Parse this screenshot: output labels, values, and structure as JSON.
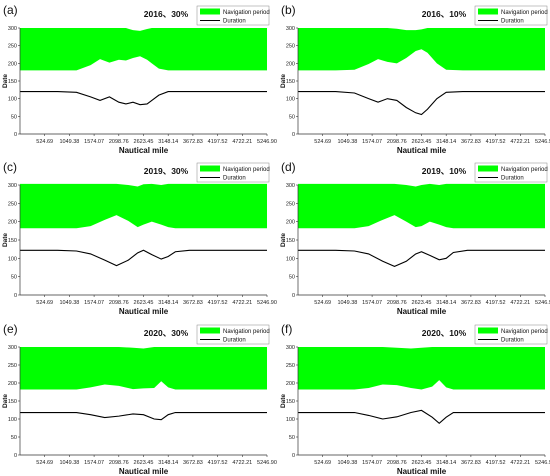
{
  "chart_data": [
    {
      "type": "area",
      "panel_label": "(a)",
      "title": "2016、30%",
      "xlabel": "Nautical mile",
      "ylabel": "Date",
      "x_ticks": [
        "524.69",
        "1049.38",
        "1574.07",
        "2098.76",
        "2623.45",
        "3148.14",
        "3672.83",
        "4197.52",
        "4722.21",
        "5246.90"
      ],
      "x": [
        0,
        400,
        800,
        1200,
        1500,
        1700,
        1900,
        2100,
        2250,
        2400,
        2550,
        2700,
        2800,
        2950,
        3148,
        3500,
        4000,
        5246.9
      ],
      "ylim": [
        0,
        300
      ],
      "yticks": [
        0,
        50,
        100,
        150,
        200,
        250,
        300
      ],
      "series": [
        {
          "name": "Navigation period",
          "type": "band",
          "color": "#00ff00",
          "lower": [
            180,
            180,
            180,
            180,
            195,
            212,
            202,
            210,
            208,
            215,
            220,
            210,
            200,
            185,
            180,
            180,
            180,
            180
          ],
          "upper": [
            300,
            300,
            300,
            300,
            300,
            300,
            300,
            300,
            300,
            294,
            292,
            297,
            300,
            300,
            300,
            300,
            300,
            300
          ]
        },
        {
          "name": "Duration",
          "type": "line",
          "color": "#000000",
          "values": [
            120,
            120,
            120,
            118,
            105,
            95,
            105,
            90,
            85,
            90,
            83,
            85,
            95,
            110,
            120,
            120,
            120,
            120
          ]
        }
      ],
      "legend": "top-right"
    },
    {
      "type": "area",
      "panel_label": "(b)",
      "title": "2016、10%",
      "xlabel": "Nautical mile",
      "ylabel": "Date",
      "x_ticks": [
        "524.69",
        "1049.38",
        "1574.07",
        "2098.76",
        "2623.45",
        "3148.14",
        "3672.83",
        "4197.52",
        "4722.21",
        "5246.90"
      ],
      "x": [
        0,
        400,
        800,
        1200,
        1500,
        1700,
        1900,
        2100,
        2300,
        2500,
        2623,
        2750,
        2950,
        3148,
        3500,
        4000,
        5246.9
      ],
      "ylim": [
        0,
        300
      ],
      "yticks": [
        0,
        50,
        100,
        150,
        200,
        250,
        300
      ],
      "series": [
        {
          "name": "Navigation period",
          "type": "band",
          "color": "#00ff00",
          "lower": [
            180,
            180,
            180,
            182,
            198,
            212,
            204,
            200,
            215,
            235,
            240,
            230,
            200,
            182,
            180,
            180,
            180
          ],
          "upper": [
            300,
            300,
            300,
            300,
            300,
            300,
            300,
            298,
            294,
            294,
            296,
            300,
            300,
            300,
            300,
            300,
            300
          ]
        },
        {
          "name": "Duration",
          "type": "line",
          "color": "#000000",
          "values": [
            120,
            120,
            120,
            116,
            100,
            90,
            100,
            95,
            75,
            60,
            55,
            70,
            100,
            118,
            120,
            120,
            120
          ]
        }
      ],
      "legend": "top-right"
    },
    {
      "type": "area",
      "panel_label": "(c)",
      "title": "2019、30%",
      "xlabel": "Nautical mile",
      "ylabel": "Date",
      "x_ticks": [
        "524.69",
        "1049.38",
        "1574.07",
        "2098.76",
        "2623.45",
        "3148.14",
        "3672.83",
        "4197.52",
        "4722.21",
        "5246.90"
      ],
      "x": [
        0,
        400,
        800,
        1200,
        1500,
        1800,
        2050,
        2300,
        2500,
        2623,
        2800,
        3000,
        3148,
        3300,
        3600,
        4000,
        5246.9
      ],
      "ylim": [
        0,
        300
      ],
      "yticks": [
        0,
        50,
        100,
        150,
        200,
        250,
        300
      ],
      "series": [
        {
          "name": "Navigation period",
          "type": "band",
          "color": "#00ff00",
          "lower": [
            182,
            182,
            182,
            182,
            188,
            205,
            218,
            202,
            185,
            192,
            200,
            192,
            185,
            182,
            182,
            182,
            182
          ],
          "upper": [
            303,
            303,
            303,
            303,
            303,
            303,
            303,
            300,
            296,
            302,
            303,
            300,
            303,
            303,
            303,
            303,
            303
          ]
        },
        {
          "name": "Duration",
          "type": "line",
          "color": "#000000",
          "values": [
            122,
            122,
            122,
            120,
            112,
            95,
            80,
            95,
            115,
            122,
            110,
            98,
            105,
            118,
            122,
            122,
            122
          ]
        }
      ],
      "legend": "top-right"
    },
    {
      "type": "area",
      "panel_label": "(d)",
      "title": "2019、10%",
      "xlabel": "Nautical mile",
      "ylabel": "Date",
      "x_ticks": [
        "524.69",
        "1049.38",
        "1574.07",
        "2098.76",
        "2623.45",
        "3148.14",
        "3672.83",
        "4197.52",
        "4722.21",
        "5246.90"
      ],
      "x": [
        0,
        400,
        800,
        1200,
        1500,
        1800,
        2050,
        2300,
        2500,
        2623,
        2800,
        3000,
        3148,
        3300,
        3600,
        4000,
        5246.9
      ],
      "ylim": [
        0,
        300
      ],
      "yticks": [
        0,
        50,
        100,
        150,
        200,
        250,
        300
      ],
      "series": [
        {
          "name": "Navigation period",
          "type": "band",
          "color": "#00ff00",
          "lower": [
            182,
            182,
            182,
            182,
            188,
            205,
            218,
            200,
            185,
            188,
            200,
            192,
            185,
            182,
            182,
            182,
            182
          ],
          "upper": [
            303,
            303,
            303,
            303,
            303,
            303,
            303,
            300,
            296,
            300,
            303,
            300,
            303,
            303,
            303,
            303,
            303
          ]
        },
        {
          "name": "Duration",
          "type": "line",
          "color": "#000000",
          "values": [
            122,
            122,
            122,
            120,
            112,
            92,
            78,
            92,
            112,
            118,
            108,
            96,
            100,
            116,
            122,
            122,
            122
          ]
        }
      ],
      "legend": "top-right"
    },
    {
      "type": "area",
      "panel_label": "(e)",
      "title": "2020、30%",
      "xlabel": "Nautical mile",
      "ylabel": "Date",
      "x_ticks": [
        "524.69",
        "1049.38",
        "1574.07",
        "2098.76",
        "2623.45",
        "3148.14",
        "3672.83",
        "4197.52",
        "4722.21",
        "5246.90"
      ],
      "x": [
        0,
        400,
        800,
        1200,
        1500,
        1800,
        2100,
        2400,
        2623,
        2850,
        3000,
        3148,
        3300,
        3500,
        4000,
        5246.9
      ],
      "ylim": [
        0,
        300
      ],
      "yticks": [
        0,
        50,
        100,
        150,
        200,
        250,
        300
      ],
      "series": [
        {
          "name": "Navigation period",
          "type": "band",
          "color": "#00ff00",
          "lower": [
            182,
            182,
            182,
            182,
            188,
            196,
            192,
            183,
            185,
            186,
            205,
            188,
            182,
            182,
            182,
            182
          ],
          "upper": [
            300,
            300,
            300,
            300,
            300,
            300,
            300,
            298,
            296,
            300,
            300,
            300,
            300,
            300,
            300,
            300
          ]
        },
        {
          "name": "Duration",
          "type": "line",
          "color": "#000000",
          "values": [
            118,
            118,
            118,
            118,
            112,
            104,
            108,
            114,
            112,
            100,
            98,
            112,
            118,
            118,
            118,
            118
          ]
        }
      ],
      "legend": "top-right"
    },
    {
      "type": "area",
      "panel_label": "(f)",
      "title": "2020、10%",
      "xlabel": "Nautical mile",
      "ylabel": "Date",
      "x_ticks": [
        "524.69",
        "1049.38",
        "1574.07",
        "2098.76",
        "2623.45",
        "3148.14",
        "3672.83",
        "4197.52",
        "4722.21",
        "5246.90"
      ],
      "x": [
        0,
        400,
        800,
        1200,
        1500,
        1800,
        2100,
        2400,
        2623,
        2850,
        3000,
        3148,
        3300,
        3500,
        4000,
        5246.9
      ],
      "ylim": [
        0,
        300
      ],
      "yticks": [
        0,
        50,
        100,
        150,
        200,
        250,
        300
      ],
      "series": [
        {
          "name": "Navigation period",
          "type": "band",
          "color": "#00ff00",
          "lower": [
            182,
            182,
            182,
            182,
            186,
            196,
            194,
            186,
            182,
            190,
            208,
            188,
            182,
            182,
            182,
            182
          ],
          "upper": [
            300,
            300,
            300,
            300,
            300,
            300,
            298,
            296,
            298,
            300,
            300,
            300,
            300,
            300,
            300,
            300
          ]
        },
        {
          "name": "Duration",
          "type": "line",
          "color": "#000000",
          "values": [
            118,
            118,
            118,
            118,
            110,
            100,
            106,
            118,
            124,
            105,
            88,
            105,
            118,
            118,
            118,
            118
          ]
        }
      ],
      "legend": "top-right"
    }
  ]
}
